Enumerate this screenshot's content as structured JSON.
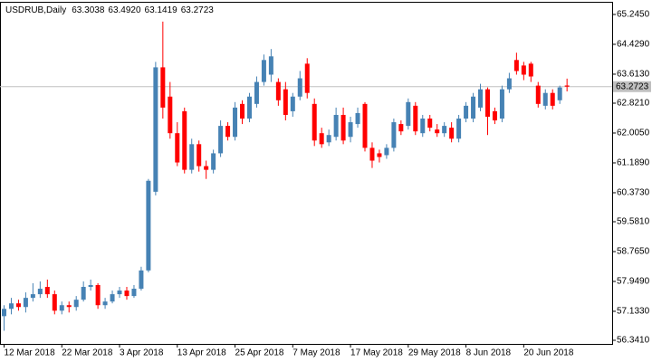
{
  "chart_data": {
    "type": "candlestick",
    "symbol": "USDRUB,Daily",
    "header_values": [
      "63.3038",
      "63.4920",
      "63.1419",
      "63.2723"
    ],
    "categories": [
      "12 Mar 2018",
      null,
      null,
      null,
      null,
      null,
      null,
      null,
      "22 Mar 2018",
      null,
      null,
      null,
      null,
      null,
      null,
      null,
      "3 Apr 2018",
      null,
      null,
      null,
      null,
      null,
      null,
      null,
      "13 Apr 2018",
      null,
      null,
      null,
      null,
      null,
      null,
      null,
      "25 Apr 2018",
      null,
      null,
      null,
      null,
      null,
      null,
      null,
      "7 May 2018",
      null,
      null,
      null,
      null,
      null,
      null,
      null,
      "17 May 2018",
      null,
      null,
      null,
      null,
      null,
      null,
      null,
      "29 May 2018",
      null,
      null,
      null,
      null,
      null,
      null,
      null,
      "8 Jun 2018",
      null,
      null,
      null,
      null,
      null,
      null,
      null,
      "20 Jun 2018",
      null,
      null,
      null,
      null,
      null,
      null
    ],
    "open": [
      57.0,
      57.2,
      57.35,
      57.25,
      57.5,
      57.6,
      57.8,
      57.6,
      57.15,
      57.3,
      57.25,
      57.45,
      57.8,
      57.85,
      57.3,
      57.4,
      57.6,
      57.7,
      57.55,
      57.75,
      58.25,
      60.4,
      63.8,
      63.0,
      62.0,
      62.6,
      61.0,
      61.7,
      61.1,
      61.0,
      61.45,
      62.2,
      61.9,
      62.8,
      62.4,
      62.8,
      63.4,
      63.6,
      63.4,
      63.2,
      62.6,
      63.0,
      63.9,
      62.8,
      62.0,
      61.75,
      61.9,
      62.5,
      61.9,
      62.25,
      62.8,
      61.6,
      61.45,
      61.4,
      61.6,
      62.25,
      62.2,
      62.75,
      62.0,
      62.4,
      62.1,
      62.0,
      62.15,
      61.85,
      62.4,
      62.4,
      62.7,
      63.2,
      62.6,
      62.4,
      63.2,
      64.0,
      63.85,
      63.9,
      63.3,
      62.75,
      63.1,
      62.9,
      63.3038
    ],
    "high": [
      57.3,
      57.5,
      57.45,
      57.65,
      57.9,
      57.95,
      58.0,
      57.7,
      57.4,
      57.4,
      57.55,
      57.95,
      58.0,
      57.9,
      57.5,
      57.7,
      57.8,
      57.8,
      57.85,
      58.35,
      60.75,
      63.95,
      65.05,
      63.4,
      62.3,
      62.7,
      61.85,
      61.8,
      61.25,
      61.55,
      62.35,
      62.3,
      62.85,
      62.9,
      63.1,
      63.55,
      64.15,
      64.3,
      63.5,
      63.4,
      63.1,
      63.7,
      64.05,
      62.95,
      62.15,
      62.1,
      62.7,
      62.7,
      62.45,
      62.7,
      62.85,
      61.75,
      61.55,
      61.7,
      62.4,
      62.35,
      62.95,
      62.85,
      62.5,
      62.5,
      62.25,
      62.3,
      62.3,
      62.5,
      62.85,
      63.1,
      63.35,
      63.25,
      62.7,
      63.3,
      63.65,
      64.2,
      63.95,
      63.95,
      63.4,
      63.2,
      63.2,
      63.3,
      63.492
    ],
    "low": [
      56.6,
      57.05,
      57.15,
      57.1,
      57.4,
      57.5,
      57.5,
      57.05,
      57.05,
      57.1,
      57.15,
      57.4,
      57.7,
      57.2,
      57.2,
      57.35,
      57.5,
      57.45,
      57.5,
      57.7,
      58.2,
      60.3,
      62.4,
      61.85,
      61.1,
      60.9,
      60.9,
      60.95,
      60.75,
      60.9,
      61.35,
      61.8,
      61.8,
      62.25,
      62.3,
      62.7,
      63.3,
      63.4,
      62.75,
      62.35,
      62.45,
      62.9,
      62.95,
      61.65,
      61.6,
      61.65,
      61.8,
      61.7,
      61.75,
      62.15,
      61.5,
      61.05,
      61.2,
      61.3,
      61.5,
      61.95,
      62.1,
      61.95,
      61.9,
      62.05,
      61.9,
      61.9,
      61.75,
      61.75,
      62.3,
      62.3,
      62.6,
      61.95,
      62.25,
      62.3,
      63.1,
      63.6,
      63.45,
      63.4,
      62.7,
      62.65,
      62.65,
      62.8,
      63.1419
    ],
    "close": [
      57.2,
      57.35,
      57.25,
      57.5,
      57.6,
      57.75,
      57.6,
      57.15,
      57.3,
      57.25,
      57.45,
      57.8,
      57.85,
      57.3,
      57.4,
      57.6,
      57.7,
      57.55,
      57.75,
      58.25,
      60.7,
      63.8,
      62.7,
      62.0,
      61.2,
      61.0,
      61.7,
      61.1,
      61.0,
      61.45,
      62.2,
      61.9,
      62.7,
      62.4,
      63.0,
      63.4,
      64.0,
      64.1,
      62.9,
      62.5,
      63.0,
      63.5,
      63.1,
      61.8,
      61.7,
      61.95,
      62.5,
      61.8,
      62.3,
      62.55,
      61.6,
      61.25,
      61.35,
      61.6,
      62.3,
      62.05,
      62.85,
      62.05,
      62.4,
      62.15,
      62.0,
      62.2,
      61.85,
      62.4,
      62.75,
      63.0,
      63.2,
      62.45,
      62.35,
      63.2,
      63.5,
      63.7,
      63.6,
      63.55,
      62.8,
      63.1,
      62.75,
      63.25,
      63.2723
    ],
    "up_color": "#4682b4",
    "down_color": "#ff0000",
    "current_price": {
      "value": 63.2723,
      "label": "63.2723"
    },
    "ylim": [
      56.242,
      65.566
    ],
    "yticks": [
      {
        "value": 65.245,
        "label": "65.2450"
      },
      {
        "value": 64.429,
        "label": "64.4290"
      },
      {
        "value": 63.613,
        "label": "63.6130"
      },
      {
        "value": 62.821,
        "label": "62.8210"
      },
      {
        "value": 62.005,
        "label": "62.0050"
      },
      {
        "value": 61.189,
        "label": "61.1890"
      },
      {
        "value": 60.373,
        "label": "60.3730"
      },
      {
        "value": 59.581,
        "label": "59.5810"
      },
      {
        "value": 58.765,
        "label": "58.7650"
      },
      {
        "value": 57.949,
        "label": "57.9490"
      },
      {
        "value": 57.133,
        "label": "57.1330"
      },
      {
        "value": 56.341,
        "label": "56.3410"
      }
    ]
  }
}
